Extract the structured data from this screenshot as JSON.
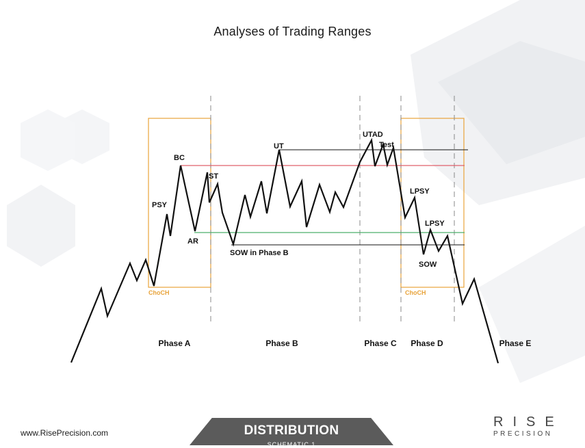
{
  "title": "Analyses of Trading Ranges",
  "event_labels": {
    "psy": "PSY",
    "bc": "BC",
    "ar": "AR",
    "st": "ST",
    "ut": "UT",
    "sow_phase_b": "SOW in Phase B",
    "utad": "UTAD",
    "test": "Test",
    "lpsy_1": "LPSY",
    "lpsy_2": "LPSY",
    "sow": "SOW"
  },
  "choch_labels": [
    "ChoCH",
    "ChoCH"
  ],
  "phases": [
    "Phase A",
    "Phase B",
    "Phase C",
    "Phase D",
    "Phase E"
  ],
  "colors": {
    "price": "#111111",
    "resistance_line": "#e0606a",
    "support_line": "#4caf6a",
    "reference_line": "#111111",
    "choch_box": "#e8a33a",
    "phase_divider": "#888888",
    "banner": "#5b5b5b"
  },
  "footer": {
    "website": "www.RisePrecision.com",
    "banner_title": "DISTRIBUTION",
    "banner_subtitle": "SCHEMATIC 1",
    "logo_top": "RISE",
    "logo_bottom": "PRECISION"
  }
}
